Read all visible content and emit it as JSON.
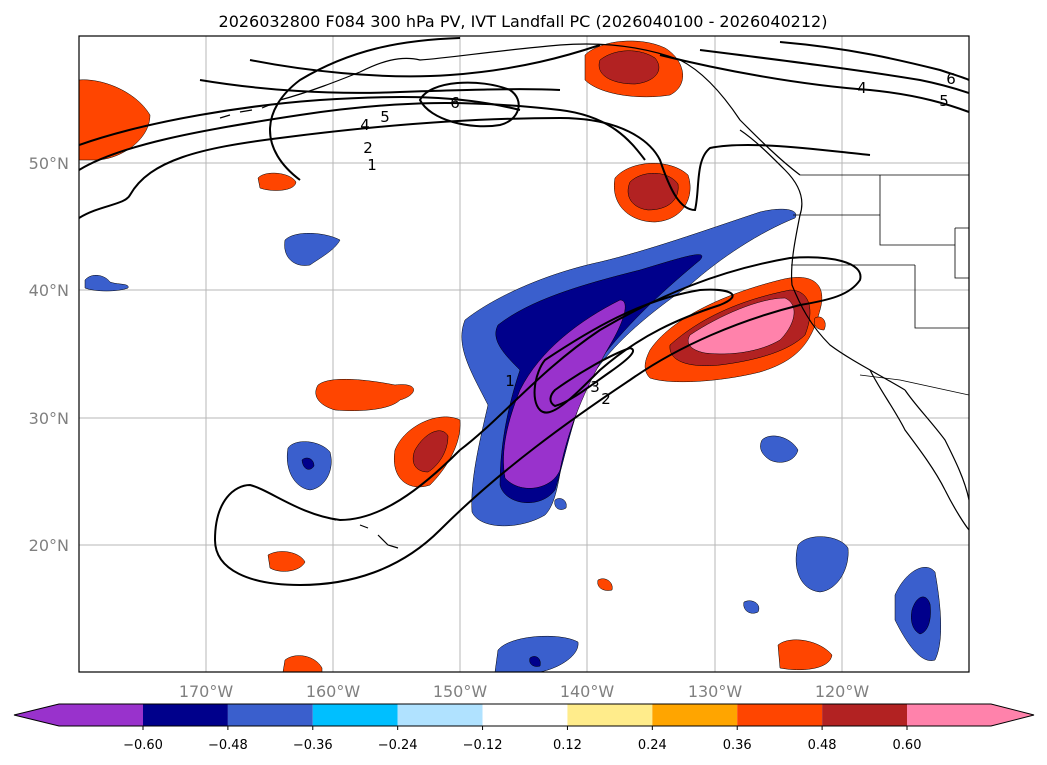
{
  "title": "2026032800 F084 300 hPa PV, IVT Landfall PC (2026040100 - 2026040212)",
  "latitude_labels": [
    "50°N",
    "40°N",
    "30°N",
    "20°N"
  ],
  "longitude_labels": [
    "170°W",
    "160°W",
    "150°W",
    "140°W",
    "130°W",
    "120°W"
  ],
  "colorbar": {
    "tick_labels": [
      "−0.60",
      "−0.48",
      "−0.36",
      "−0.24",
      "−0.12",
      "0.12",
      "0.24",
      "0.36",
      "0.48",
      "0.60"
    ],
    "colors": [
      "#9932cc",
      "#00008b",
      "#3a5fcd",
      "#00bfff",
      "#b0e2ff",
      "#ffffff",
      "#ffec8b",
      "#ffa500",
      "#ff4500",
      "#b22222",
      "#ff82ab"
    ]
  },
  "contour_labels": [
    "6",
    "4",
    "5",
    "2",
    "1",
    "6",
    "5",
    "4",
    "1",
    "3",
    "2"
  ],
  "colors": {
    "coast": "#000000",
    "grid": "#b0b0b0"
  }
}
